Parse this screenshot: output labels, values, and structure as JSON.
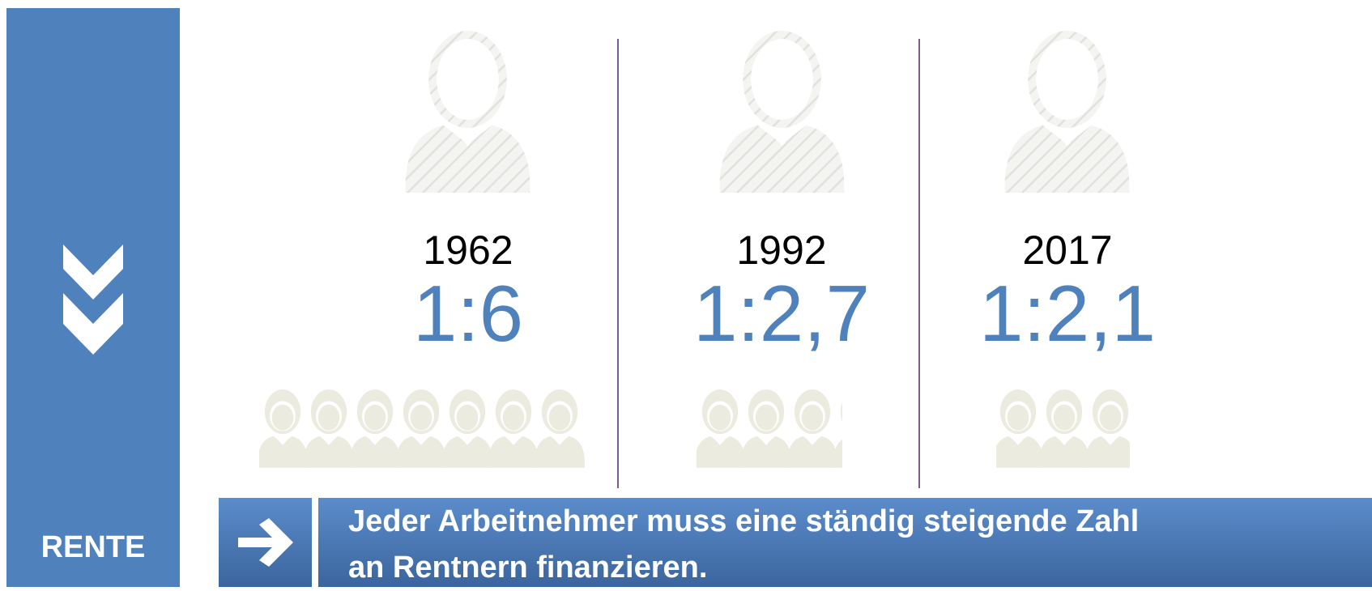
{
  "sidebar": {
    "label": "RENTE"
  },
  "columns": [
    {
      "year": "1962",
      "ratio": "1:6"
    },
    {
      "year": "1992",
      "ratio": "1:2,7"
    },
    {
      "year": "2017",
      "ratio": "1:2,1"
    }
  ],
  "footer": {
    "lines": [
      "Jeder Arbeitnehmer muss eine ständig steigende Zahl",
      "an Rentnern finanzieren."
    ]
  }
}
